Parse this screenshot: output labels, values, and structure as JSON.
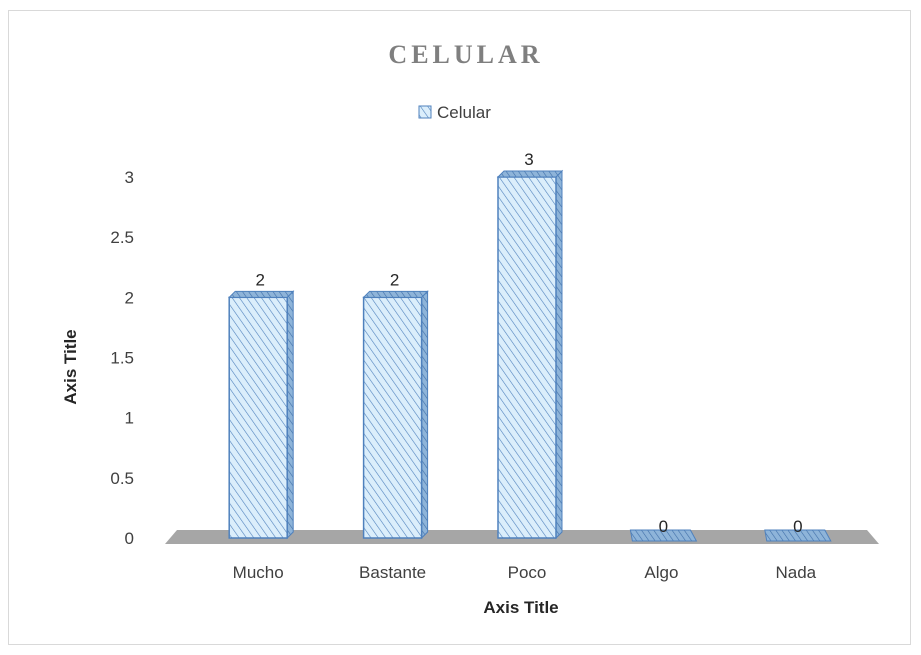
{
  "chart_data": {
    "type": "bar",
    "title": "CELULAR",
    "categories": [
      "Mucho",
      "Bastante",
      "Poco",
      "Algo",
      "Nada"
    ],
    "series": [
      {
        "name": "Celular",
        "values": [
          2,
          2,
          3,
          0,
          0
        ]
      }
    ],
    "data_labels": [
      "2",
      "2",
      "3",
      "0",
      "0"
    ],
    "xlabel": "Axis Title",
    "ylabel": "Axis Title",
    "ylim": [
      0,
      3
    ],
    "yticks": [
      "0",
      "0.5",
      "1",
      "1.5",
      "2",
      "2.5",
      "3"
    ],
    "legend_position": "top",
    "grid": false,
    "style": "3d-column",
    "colors": {
      "bar_fill": "#dbeefb",
      "bar_hatch": "#4f81bd",
      "bar_outline": "#4f81bd",
      "floor": "#a6a6a6",
      "title": "#7f7f7f"
    }
  }
}
